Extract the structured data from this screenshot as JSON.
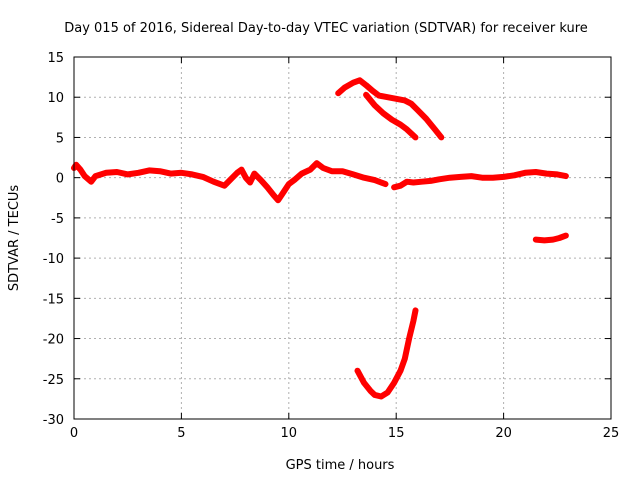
{
  "chart_data": {
    "type": "scatter",
    "title": "Day 015 of 2016, Sidereal Day-to-day VTEC variation (SDTVAR) for receiver kure",
    "xlabel": "GPS time / hours",
    "ylabel": "SDTVAR / TECUs",
    "xlim": [
      0,
      25
    ],
    "ylim": [
      -30,
      15
    ],
    "xticks": [
      0,
      5,
      10,
      15,
      20,
      25
    ],
    "yticks": [
      15,
      10,
      5,
      0,
      -5,
      -10,
      -15,
      -20,
      -25,
      -30
    ],
    "grid": true,
    "series_color": "#ff0000",
    "series": [
      {
        "name": "main-trace",
        "points": [
          [
            0.0,
            1.2
          ],
          [
            0.1,
            1.6
          ],
          [
            0.3,
            1.0
          ],
          [
            0.5,
            0.2
          ],
          [
            0.8,
            -0.5
          ],
          [
            1.0,
            0.2
          ],
          [
            1.5,
            0.6
          ],
          [
            2.0,
            0.7
          ],
          [
            2.5,
            0.4
          ],
          [
            3.0,
            0.6
          ],
          [
            3.5,
            0.9
          ],
          [
            4.0,
            0.8
          ],
          [
            4.5,
            0.5
          ],
          [
            5.0,
            0.6
          ],
          [
            5.5,
            0.4
          ],
          [
            6.0,
            0.1
          ],
          [
            6.5,
            -0.5
          ],
          [
            7.0,
            -1.0
          ],
          [
            7.3,
            -0.2
          ],
          [
            7.6,
            0.6
          ],
          [
            7.8,
            1.0
          ],
          [
            8.0,
            0.0
          ],
          [
            8.2,
            -0.6
          ],
          [
            8.4,
            0.5
          ],
          [
            8.7,
            -0.3
          ],
          [
            9.0,
            -1.2
          ],
          [
            9.3,
            -2.2
          ],
          [
            9.5,
            -2.8
          ],
          [
            9.7,
            -2.0
          ],
          [
            10.0,
            -0.8
          ],
          [
            10.3,
            -0.2
          ],
          [
            10.6,
            0.5
          ],
          [
            11.0,
            1.0
          ],
          [
            11.3,
            1.8
          ],
          [
            11.6,
            1.2
          ],
          [
            12.0,
            0.8
          ],
          [
            12.5,
            0.8
          ],
          [
            13.0,
            0.4
          ],
          [
            13.5,
            0.0
          ],
          [
            14.0,
            -0.3
          ],
          [
            14.5,
            -0.8
          ]
        ]
      },
      {
        "name": "trace-after-15",
        "points": [
          [
            14.9,
            -1.2
          ],
          [
            15.2,
            -1.0
          ],
          [
            15.5,
            -0.5
          ],
          [
            15.8,
            -0.6
          ],
          [
            16.2,
            -0.5
          ],
          [
            16.6,
            -0.4
          ],
          [
            17.0,
            -0.2
          ],
          [
            17.5,
            0.0
          ],
          [
            18.0,
            0.1
          ],
          [
            18.5,
            0.2
          ],
          [
            19.0,
            0.0
          ],
          [
            19.5,
            0.0
          ],
          [
            20.0,
            0.1
          ],
          [
            20.5,
            0.3
          ],
          [
            21.0,
            0.6
          ],
          [
            21.5,
            0.7
          ],
          [
            22.0,
            0.5
          ],
          [
            22.5,
            0.4
          ],
          [
            22.9,
            0.2
          ]
        ]
      },
      {
        "name": "upper-arc",
        "points": [
          [
            12.3,
            10.5
          ],
          [
            12.6,
            11.2
          ],
          [
            13.0,
            11.8
          ],
          [
            13.3,
            12.1
          ],
          [
            13.6,
            11.5
          ],
          [
            13.9,
            10.8
          ],
          [
            14.2,
            10.2
          ],
          [
            14.6,
            10.0
          ],
          [
            15.0,
            9.8
          ],
          [
            15.4,
            9.6
          ],
          [
            15.7,
            9.2
          ],
          [
            16.0,
            8.4
          ],
          [
            16.4,
            7.3
          ],
          [
            16.8,
            6.0
          ],
          [
            17.1,
            5.0
          ]
        ]
      },
      {
        "name": "upper-branch",
        "points": [
          [
            13.6,
            10.3
          ],
          [
            14.0,
            9.0
          ],
          [
            14.4,
            8.0
          ],
          [
            14.8,
            7.2
          ],
          [
            15.2,
            6.6
          ],
          [
            15.5,
            6.0
          ],
          [
            15.9,
            5.0
          ]
        ]
      },
      {
        "name": "lower-hook",
        "points": [
          [
            13.2,
            -24.0
          ],
          [
            13.5,
            -25.5
          ],
          [
            13.8,
            -26.5
          ],
          [
            14.0,
            -27.0
          ],
          [
            14.3,
            -27.2
          ],
          [
            14.6,
            -26.7
          ],
          [
            14.9,
            -25.5
          ],
          [
            15.2,
            -24.0
          ],
          [
            15.4,
            -22.5
          ],
          [
            15.6,
            -20.0
          ],
          [
            15.8,
            -17.8
          ],
          [
            15.9,
            -16.5
          ]
        ]
      },
      {
        "name": "lower-right-segment",
        "points": [
          [
            21.5,
            -7.7
          ],
          [
            21.9,
            -7.8
          ],
          [
            22.3,
            -7.7
          ],
          [
            22.6,
            -7.5
          ],
          [
            22.9,
            -7.2
          ]
        ]
      }
    ]
  }
}
